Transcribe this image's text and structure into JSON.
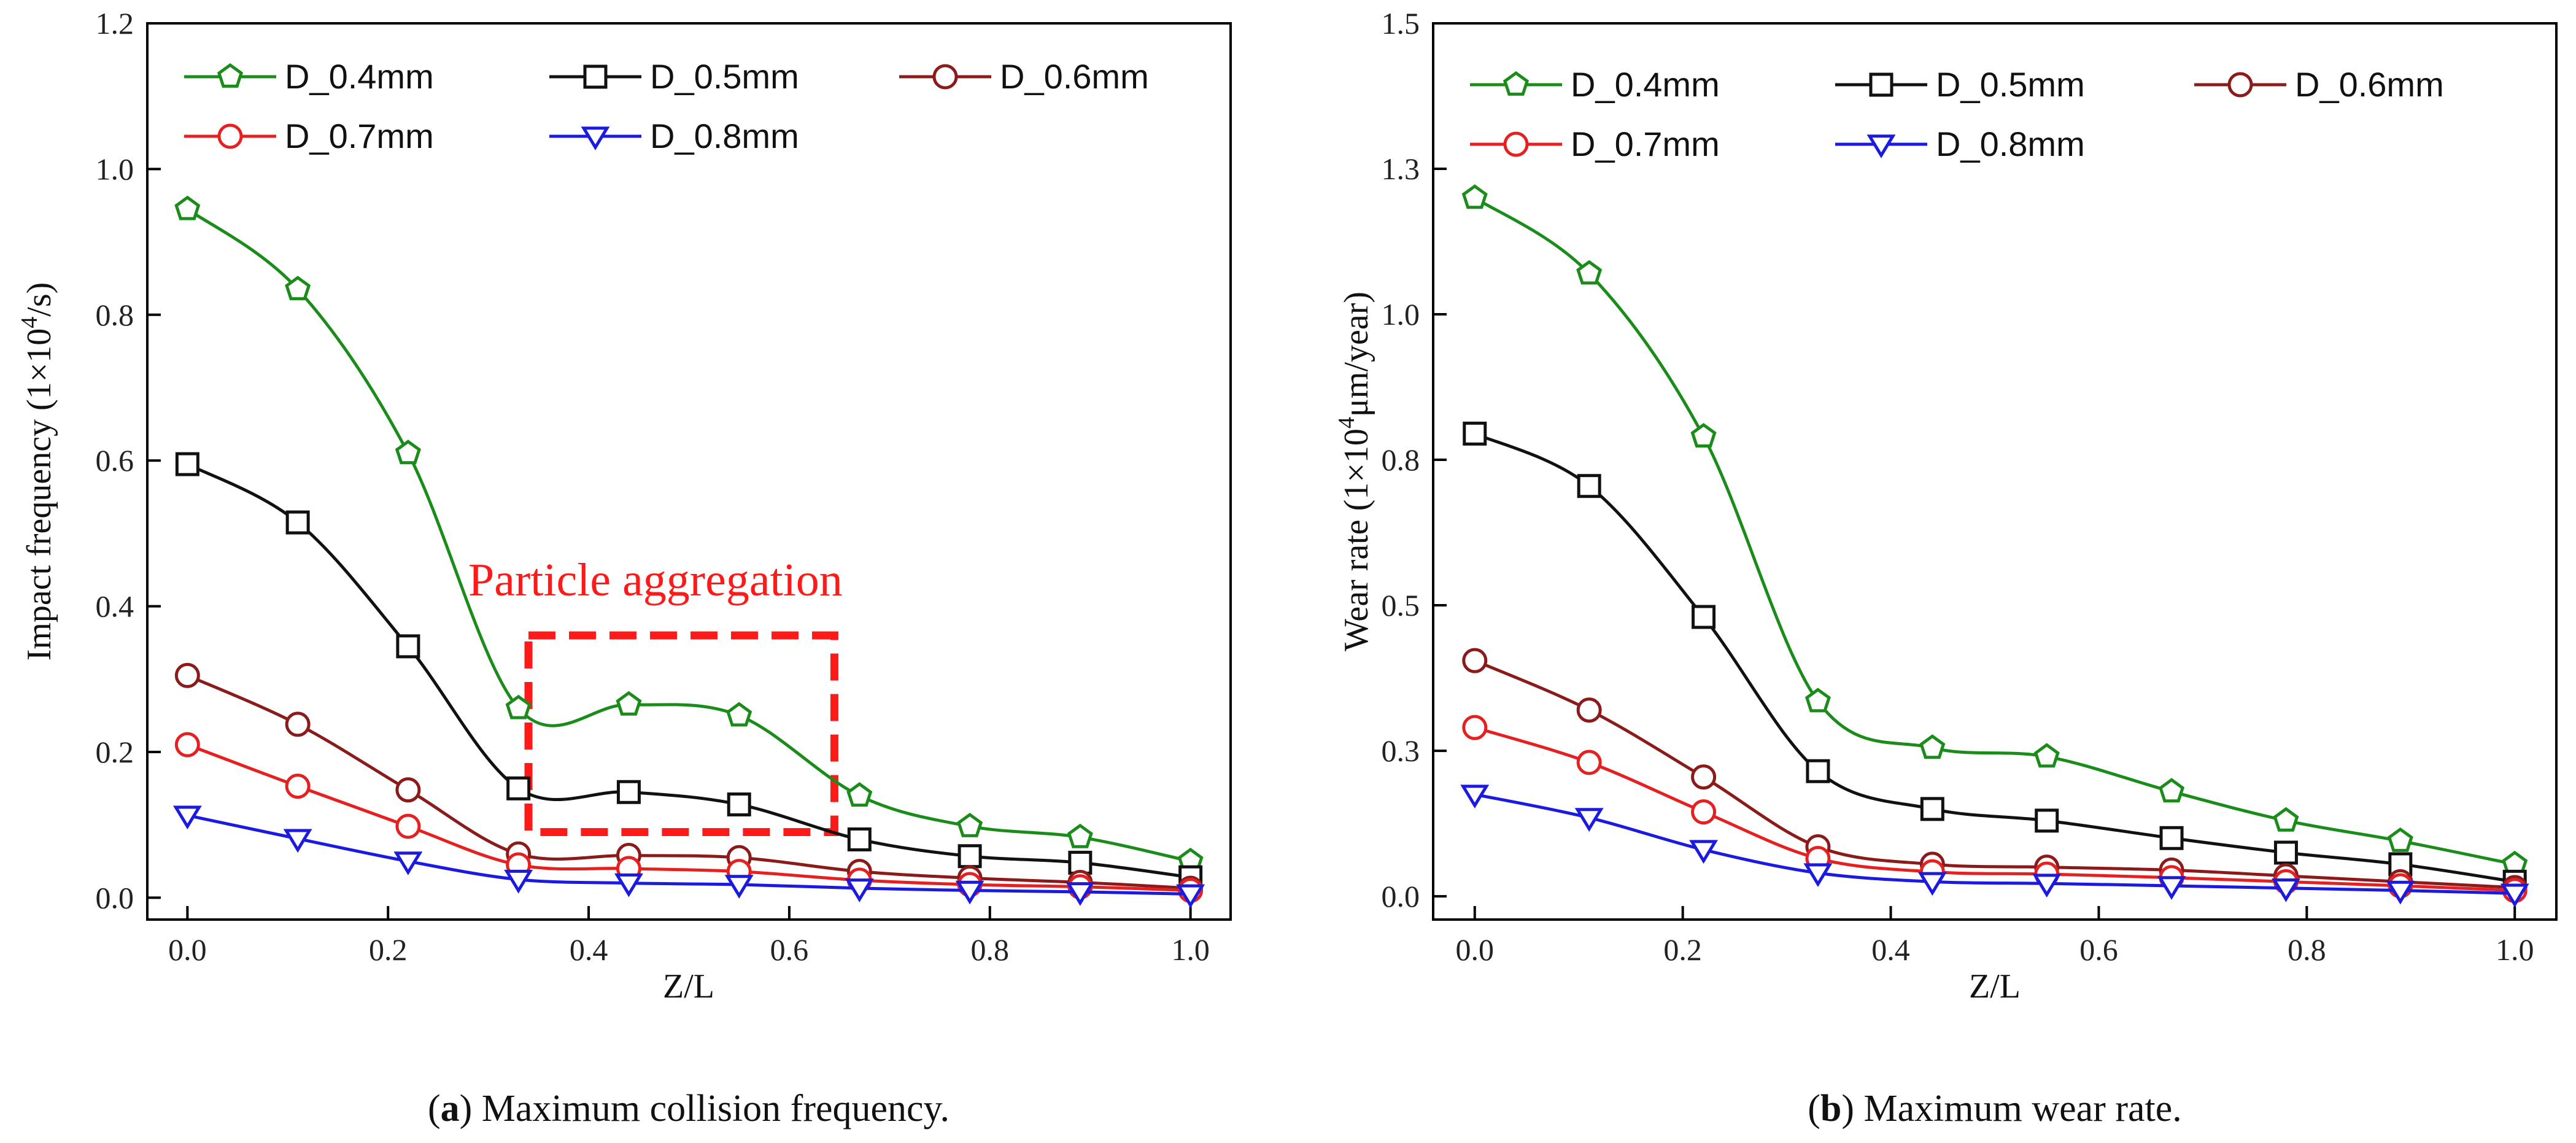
{
  "chart_data": [
    {
      "type": "line",
      "panel_id": "a",
      "caption_letter": "a",
      "caption_text": ") Maximum collision frequency.",
      "caption_open": "(",
      "xlabel": "Z/L",
      "ylabel_prefix": "Impact frequency (1×10",
      "ylabel_sup": "4",
      "ylabel_suffix": "/s)",
      "xlim": [
        -0.04,
        1.04
      ],
      "ylim": [
        -0.03,
        1.2
      ],
      "xticks": [
        0.0,
        0.2,
        0.4,
        0.6,
        0.8,
        1.0
      ],
      "xtick_labels": [
        "0.0",
        "0.2",
        "0.4",
        "0.6",
        "0.8",
        "1.0"
      ],
      "yticks": [
        0.0,
        0.2,
        0.4,
        0.6,
        0.8,
        1.0,
        1.2
      ],
      "ytick_labels": [
        "0.0",
        "0.2",
        "0.4",
        "0.6",
        "0.8",
        "1.0",
        "1.2"
      ],
      "annotation": {
        "text": "Particle aggregation",
        "color": "#ff1a1a",
        "box_x": [
          0.34,
          0.645
        ],
        "box_y": [
          0.09,
          0.36
        ],
        "text_x": 0.28,
        "text_y": 0.415
      },
      "x": [
        0.0,
        0.11,
        0.22,
        0.33,
        0.44,
        0.55,
        0.67,
        0.78,
        0.89,
        1.0
      ],
      "series": [
        {
          "name": "D_0.4mm",
          "color": "#1a8c1a",
          "marker": "pentagon",
          "values": [
            0.945,
            0.835,
            0.61,
            0.26,
            0.265,
            0.25,
            0.14,
            0.098,
            0.083,
            0.05
          ]
        },
        {
          "name": "D_0.5mm",
          "color": "#111111",
          "marker": "square",
          "values": [
            0.595,
            0.515,
            0.345,
            0.15,
            0.145,
            0.128,
            0.08,
            0.057,
            0.048,
            0.028
          ]
        },
        {
          "name": "D_0.6mm",
          "color": "#8b1a1a",
          "marker": "circle",
          "values": [
            0.305,
            0.238,
            0.148,
            0.06,
            0.058,
            0.055,
            0.036,
            0.027,
            0.021,
            0.013
          ]
        },
        {
          "name": "D_0.7mm",
          "color": "#e62020",
          "marker": "circle",
          "values": [
            0.21,
            0.153,
            0.098,
            0.045,
            0.04,
            0.036,
            0.024,
            0.018,
            0.015,
            0.01
          ]
        },
        {
          "name": "D_0.8mm",
          "color": "#1a1ae0",
          "marker": "triangle-down",
          "values": [
            0.113,
            0.081,
            0.05,
            0.025,
            0.02,
            0.018,
            0.013,
            0.01,
            0.008,
            0.005
          ]
        }
      ]
    },
    {
      "type": "line",
      "panel_id": "b",
      "caption_letter": "b",
      "caption_text": ") Maximum wear rate.",
      "caption_open": "(",
      "xlabel": "Z/L",
      "ylabel_prefix": "Wear rate (1×10",
      "ylabel_sup": "4",
      "ylabel_suffix": "μm/year)",
      "xlim": [
        -0.04,
        1.04
      ],
      "ylim": [
        -0.04,
        1.5
      ],
      "xticks": [
        0.0,
        0.2,
        0.4,
        0.6,
        0.8,
        1.0
      ],
      "xtick_labels": [
        "0.0",
        "0.2",
        "0.4",
        "0.6",
        "0.8",
        "1.0"
      ],
      "yticks": [
        0.0,
        0.25,
        0.5,
        0.75,
        1.0,
        1.25,
        1.5
      ],
      "ytick_labels": [
        "0.0",
        "0.3",
        "0.5",
        "0.8",
        "1.0",
        "1.3",
        "1.5"
      ],
      "x": [
        0.0,
        0.11,
        0.22,
        0.33,
        0.44,
        0.55,
        0.67,
        0.78,
        0.89,
        1.0
      ],
      "series": [
        {
          "name": "D_0.4mm",
          "color": "#1a8c1a",
          "marker": "pentagon",
          "values": [
            1.2,
            1.07,
            0.79,
            0.335,
            0.255,
            0.24,
            0.18,
            0.13,
            0.095,
            0.055
          ]
        },
        {
          "name": "D_0.5mm",
          "color": "#111111",
          "marker": "square",
          "values": [
            0.795,
            0.705,
            0.48,
            0.215,
            0.15,
            0.13,
            0.1,
            0.075,
            0.055,
            0.025
          ]
        },
        {
          "name": "D_0.6mm",
          "color": "#8b1a1a",
          "marker": "circle",
          "values": [
            0.405,
            0.32,
            0.205,
            0.085,
            0.055,
            0.05,
            0.045,
            0.035,
            0.025,
            0.015
          ]
        },
        {
          "name": "D_0.7mm",
          "color": "#e62020",
          "marker": "circle",
          "values": [
            0.29,
            0.23,
            0.145,
            0.065,
            0.042,
            0.038,
            0.032,
            0.025,
            0.018,
            0.01
          ]
        },
        {
          "name": "D_0.8mm",
          "color": "#1a1ae0",
          "marker": "triangle-down",
          "values": [
            0.175,
            0.135,
            0.08,
            0.04,
            0.025,
            0.022,
            0.018,
            0.014,
            0.01,
            0.005
          ]
        }
      ]
    }
  ]
}
